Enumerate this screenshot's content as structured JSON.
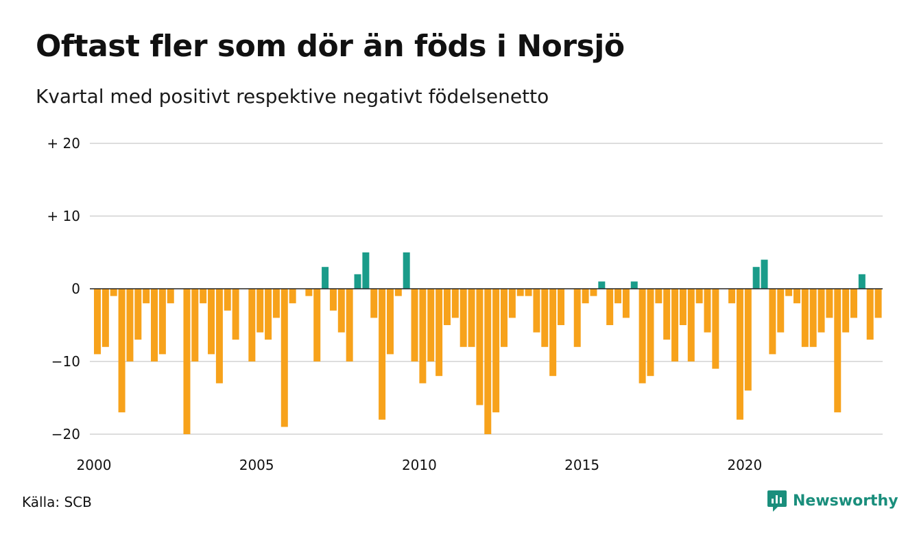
{
  "title": "Oftast fler som dör än föds i Norsjö",
  "subtitle": "Kvartal med positivt respektive negativt födelsenetto",
  "source": "Källa: SCB",
  "brand": {
    "name": "Newsworthy",
    "icon": "newsworthy-logo-icon"
  },
  "colors": {
    "positive": "#1a9c8a",
    "negative": "#f7a21b",
    "grid": "#dddddd",
    "zero": "#222222",
    "brand": "#1a8e7c"
  },
  "chart_data": {
    "type": "bar",
    "title": "Oftast fler som dör än föds i Norsjö",
    "subtitle": "Kvartal med positivt respektive negativt födelsenetto",
    "xlabel": "",
    "ylabel": "",
    "x_ticks": [
      "2000",
      "2005",
      "2010",
      "2015",
      "2020"
    ],
    "y_ticks": [
      {
        "value": 20,
        "label": "+ 20"
      },
      {
        "value": 10,
        "label": "+ 10"
      },
      {
        "value": 0,
        "label": "0"
      },
      {
        "value": -10,
        "label": "−10"
      },
      {
        "value": -20,
        "label": "−20"
      }
    ],
    "ylim": [
      -20,
      20
    ],
    "grid": true,
    "start": "2000 Q1",
    "values": [
      -9,
      -8,
      -1,
      -17,
      -10,
      -7,
      -2,
      -10,
      -9,
      -2,
      0,
      -20,
      -10,
      -2,
      -9,
      -13,
      -3,
      -7,
      0,
      -10,
      -6,
      -7,
      -4,
      -19,
      -2,
      0,
      -1,
      -10,
      3,
      -3,
      -6,
      -10,
      2,
      5,
      -4,
      -18,
      -9,
      -1,
      5,
      -10,
      -13,
      -10,
      -12,
      -5,
      -4,
      -8,
      -8,
      -16,
      -20,
      -17,
      -8,
      -4,
      -1,
      -1,
      -6,
      -8,
      -12,
      -5,
      0,
      -8,
      -2,
      -1,
      1,
      -5,
      -2,
      -4,
      1,
      -13,
      -12,
      -2,
      -7,
      -10,
      -5,
      -10,
      -2,
      -6,
      -11,
      0,
      -2,
      -18,
      -14,
      3,
      4,
      -9,
      -6,
      -1,
      -2,
      -8,
      -8,
      -6,
      -4,
      -17,
      -6,
      -4,
      2,
      -7,
      -4
    ]
  }
}
